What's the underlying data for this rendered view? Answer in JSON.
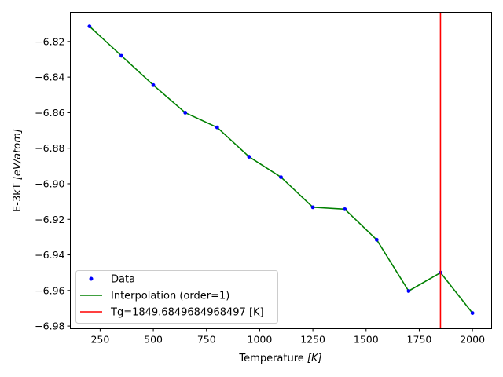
{
  "chart_data": {
    "type": "line",
    "xlabel_prefix": "Temperature ",
    "xlabel_unit": "[K]",
    "ylabel_prefix": "E-3kT ",
    "ylabel_unit": "[eV/atom]",
    "xlim": [
      110,
      2090
    ],
    "ylim": [
      -6.9815,
      -6.8035
    ],
    "xticks": [
      250,
      500,
      750,
      1000,
      1250,
      1500,
      1750,
      2000
    ],
    "xtick_labels": [
      "250",
      "500",
      "750",
      "1000",
      "1250",
      "1500",
      "1750",
      "2000"
    ],
    "yticks": [
      -6.98,
      -6.96,
      -6.94,
      -6.92,
      -6.9,
      -6.88,
      -6.86,
      -6.84,
      -6.82
    ],
    "ytick_labels": [
      "−6.98",
      "−6.96",
      "−6.94",
      "−6.92",
      "−6.90",
      "−6.88",
      "−6.86",
      "−6.84",
      "−6.82"
    ],
    "series": [
      {
        "name": "Data",
        "kind": "points",
        "color": "#0000ff",
        "x": [
          200,
          350,
          500,
          650,
          800,
          950,
          1100,
          1250,
          1400,
          1550,
          1700,
          1850,
          2000
        ],
        "y": [
          -6.8115,
          -6.828,
          -6.8445,
          -6.86,
          -6.8683,
          -6.8848,
          -6.8963,
          -6.9132,
          -6.9143,
          -6.9315,
          -6.9603,
          -6.95,
          -6.9727
        ]
      },
      {
        "name": "Interpolation (order=1)",
        "kind": "line",
        "color": "#008000",
        "x": [
          200,
          350,
          500,
          650,
          800,
          950,
          1100,
          1250,
          1400,
          1550,
          1700,
          1850,
          2000
        ],
        "y": [
          -6.8115,
          -6.828,
          -6.8445,
          -6.86,
          -6.8683,
          -6.8848,
          -6.8963,
          -6.9132,
          -6.9143,
          -6.9315,
          -6.9603,
          -6.95,
          -6.9727
        ]
      },
      {
        "name": "Tg=1849.6849684968497 [K]",
        "kind": "vline",
        "color": "#ff0000",
        "x": 1849.6849684968497
      }
    ],
    "legend_position": "lower-left",
    "grid": false
  }
}
